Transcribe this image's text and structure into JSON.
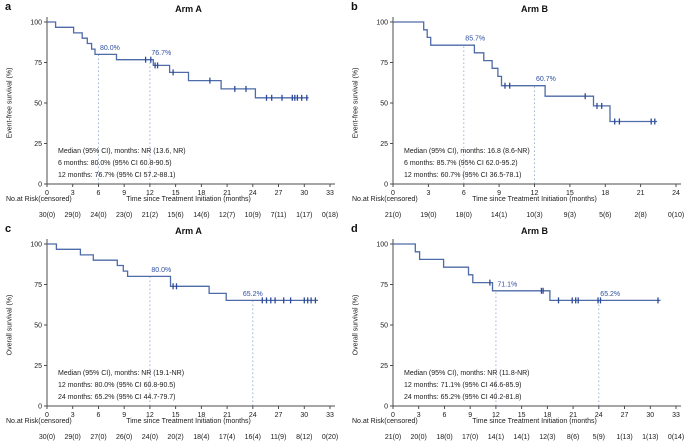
{
  "figure": {
    "colors": {
      "line": "#4d6ba8",
      "censor": "#2c4a99",
      "annotation": "#2d4fa1",
      "dotted": "#9db1d9",
      "axis": "#4d4d4d",
      "text": "#1a1a1a"
    }
  },
  "chart_data": [
    {
      "type": "line",
      "subtype": "kaplan-meier-step",
      "letter": "a",
      "title": "Arm A",
      "ylabel": "Event-free survival (%)",
      "xlabel": "Time since Treatment Initiation (months)",
      "risk_label": "No.at Risk(censored)",
      "xlim": [
        0,
        33
      ],
      "ylim": [
        0,
        100
      ],
      "xticks": [
        0,
        3,
        6,
        9,
        12,
        15,
        18,
        21,
        24,
        27,
        30,
        33
      ],
      "yticks": [
        0,
        25,
        50,
        75,
        100
      ],
      "steps": [
        [
          0,
          100
        ],
        [
          1,
          96.7
        ],
        [
          3.1,
          93.3
        ],
        [
          4.1,
          90
        ],
        [
          4.7,
          86.7
        ],
        [
          5.2,
          83.3
        ],
        [
          5.6,
          80
        ],
        [
          8.1,
          76.7
        ],
        [
          12.4,
          73.2
        ],
        [
          14.3,
          68.9
        ],
        [
          16.5,
          63.8
        ],
        [
          20.3,
          58.7
        ],
        [
          24.3,
          53.2
        ]
      ],
      "end_x": 30.5,
      "censors": [
        [
          11.5,
          76.7
        ],
        [
          12.1,
          76.7
        ],
        [
          12.6,
          73.2
        ],
        [
          12.9,
          73.2
        ],
        [
          14.7,
          68.9
        ],
        [
          19.0,
          63.8
        ],
        [
          21.9,
          58.7
        ],
        [
          23.2,
          58.7
        ],
        [
          25.6,
          53.2
        ],
        [
          26.2,
          53.2
        ],
        [
          27.4,
          53.2
        ],
        [
          28.6,
          53.2
        ],
        [
          28.9,
          53.2
        ],
        [
          29.2,
          53.2
        ],
        [
          29.7,
          53.2
        ],
        [
          30.3,
          53.2
        ]
      ],
      "annotations": [
        {
          "x": 6,
          "y": 80,
          "label": "80.0%",
          "anchor": "start"
        },
        {
          "x": 12,
          "y": 76.7,
          "label": "76.7%",
          "anchor": "start"
        }
      ],
      "stats": [
        "Median (95% CI), months: NR (13.6, NR)",
        "6 months: 80.0% (95% CI 60.8-90.5)",
        "12 months: 76.7% (95% CI 57.2-88.1)"
      ],
      "risk_counts": [
        "30(0)",
        "29(0)",
        "24(0)",
        "23(0)",
        "21(2)",
        "15(6)",
        "14(6)",
        "12(7)",
        "10(9)",
        "7(11)",
        "1(17)",
        "0(18)"
      ]
    },
    {
      "type": "line",
      "subtype": "kaplan-meier-step",
      "letter": "b",
      "title": "Arm B",
      "ylabel": "Event-free survival (%)",
      "xlabel": "Time since Treatment Initiation (months)",
      "risk_label": "No.at Risk(censored)",
      "xlim": [
        0,
        24
      ],
      "ylim": [
        0,
        100
      ],
      "xticks": [
        0,
        3,
        6,
        9,
        12,
        15,
        18,
        21,
        24
      ],
      "yticks": [
        0,
        25,
        50,
        75,
        100
      ],
      "steps": [
        [
          0,
          100
        ],
        [
          2.6,
          95.2
        ],
        [
          2.9,
          90.5
        ],
        [
          3.2,
          85.7
        ],
        [
          6.9,
          81.0
        ],
        [
          7.7,
          76.2
        ],
        [
          8.4,
          71.4
        ],
        [
          8.9,
          66.4
        ],
        [
          9.2,
          60.7
        ],
        [
          12.9,
          54.2
        ],
        [
          17.0,
          48.2
        ],
        [
          18.4,
          38.6
        ]
      ],
      "end_x": 22.4,
      "censors": [
        [
          9.5,
          60.7
        ],
        [
          9.9,
          60.7
        ],
        [
          16.3,
          54.2
        ],
        [
          17.3,
          48.2
        ],
        [
          17.7,
          48.2
        ],
        [
          18.8,
          38.6
        ],
        [
          19.2,
          38.6
        ],
        [
          21.9,
          38.6
        ],
        [
          22.2,
          38.6
        ]
      ],
      "annotations": [
        {
          "x": 6,
          "y": 85.7,
          "label": "85.7%",
          "anchor": "start"
        },
        {
          "x": 12,
          "y": 60.7,
          "label": "60.7%",
          "anchor": "start"
        }
      ],
      "stats": [
        "Median (95% CI), months: 16.8 (8.6-NR)",
        "6 months: 85.7% (95% CI 62.0-95.2)",
        "12 months: 60.7% (95% CI 36.5-78.1)"
      ],
      "risk_counts": [
        "21(0)",
        "19(0)",
        "18(0)",
        "14(1)",
        "10(3)",
        "9(3)",
        "5(6)",
        "2(8)",
        "0(10)"
      ]
    },
    {
      "type": "line",
      "subtype": "kaplan-meier-step",
      "letter": "c",
      "title": "Arm A",
      "ylabel": "Overall survival (%)",
      "xlabel": "Time since Treatment Initiation (months)",
      "risk_label": "No.at Risk(censored)",
      "xlim": [
        0,
        33
      ],
      "ylim": [
        0,
        100
      ],
      "xticks": [
        0,
        3,
        6,
        9,
        12,
        15,
        18,
        21,
        24,
        27,
        30,
        33
      ],
      "yticks": [
        0,
        25,
        50,
        75,
        100
      ],
      "steps": [
        [
          0,
          100
        ],
        [
          1.1,
          96.7
        ],
        [
          3.9,
          93.3
        ],
        [
          5.4,
          90.0
        ],
        [
          8.2,
          86.7
        ],
        [
          8.9,
          83.3
        ],
        [
          9.4,
          80.0
        ],
        [
          14.4,
          73.9
        ],
        [
          18.9,
          69.5
        ],
        [
          20.9,
          65.2
        ]
      ],
      "end_x": 31.6,
      "censors": [
        [
          14.7,
          73.9
        ],
        [
          15.1,
          73.9
        ],
        [
          25.1,
          65.2
        ],
        [
          25.6,
          65.2
        ],
        [
          26.1,
          65.2
        ],
        [
          26.6,
          65.2
        ],
        [
          27.6,
          65.2
        ],
        [
          28.4,
          65.2
        ],
        [
          30.0,
          65.2
        ],
        [
          30.4,
          65.2
        ],
        [
          30.8,
          65.2
        ],
        [
          31.3,
          65.2
        ]
      ],
      "annotations": [
        {
          "x": 12,
          "y": 80,
          "label": "80.0%",
          "anchor": "start"
        },
        {
          "x": 24,
          "y": 65.2,
          "label": "65.2%",
          "anchor": "middle"
        }
      ],
      "stats": [
        "Median (95% CI), months: NR (19.1-NR)",
        "12 months: 80.0% (95% CI 60.8-90.5)",
        "24 months: 65.2% (95% CI 44.7-79.7)"
      ],
      "risk_counts": [
        "30(0)",
        "29(0)",
        "27(0)",
        "26(0)",
        "24(0)",
        "20(2)",
        "18(4)",
        "17(4)",
        "16(4)",
        "11(9)",
        "8(12)",
        "0(20)"
      ]
    },
    {
      "type": "line",
      "subtype": "kaplan-meier-step",
      "letter": "d",
      "title": "Arm B",
      "ylabel": "Overall survival (%)",
      "xlabel": "Time since Treatment Initiation (months)",
      "risk_label": "No.at Risk(censored)",
      "xlim": [
        0,
        33
      ],
      "ylim": [
        0,
        100
      ],
      "xticks": [
        0,
        3,
        6,
        9,
        12,
        15,
        18,
        21,
        24,
        27,
        30,
        33
      ],
      "yticks": [
        0,
        25,
        50,
        75,
        100
      ],
      "steps": [
        [
          0,
          100
        ],
        [
          2.6,
          95.2
        ],
        [
          3.1,
          90.5
        ],
        [
          5.9,
          85.7
        ],
        [
          8.8,
          81.0
        ],
        [
          9.3,
          76.2
        ],
        [
          11.6,
          71.1
        ],
        [
          18.3,
          65.2
        ]
      ],
      "end_x": 31.2,
      "censors": [
        [
          11.3,
          76.2
        ],
        [
          17.3,
          71.1
        ],
        [
          17.5,
          71.1
        ],
        [
          19.3,
          65.2
        ],
        [
          20.9,
          65.2
        ],
        [
          21.3,
          65.2
        ],
        [
          21.6,
          65.2
        ],
        [
          23.9,
          65.2
        ],
        [
          24.2,
          65.2
        ],
        [
          30.9,
          65.2
        ]
      ],
      "annotations": [
        {
          "x": 12,
          "y": 71.1,
          "label": "71.1%",
          "anchor": "start"
        },
        {
          "x": 24,
          "y": 65.2,
          "label": "65.2%",
          "anchor": "start"
        }
      ],
      "stats": [
        "Median (95% CI), months: NR (11.8-NR)",
        "12 months: 71.1% (95% CI 46.6-85.9)",
        "24 months: 65.2% (95% CI 40.2-81.8)"
      ],
      "risk_counts": [
        "21(0)",
        "20(0)",
        "18(0)",
        "17(0)",
        "14(1)",
        "14(1)",
        "12(3)",
        "8(6)",
        "5(9)",
        "1(13)",
        "1(13)",
        "0(14)"
      ]
    }
  ]
}
